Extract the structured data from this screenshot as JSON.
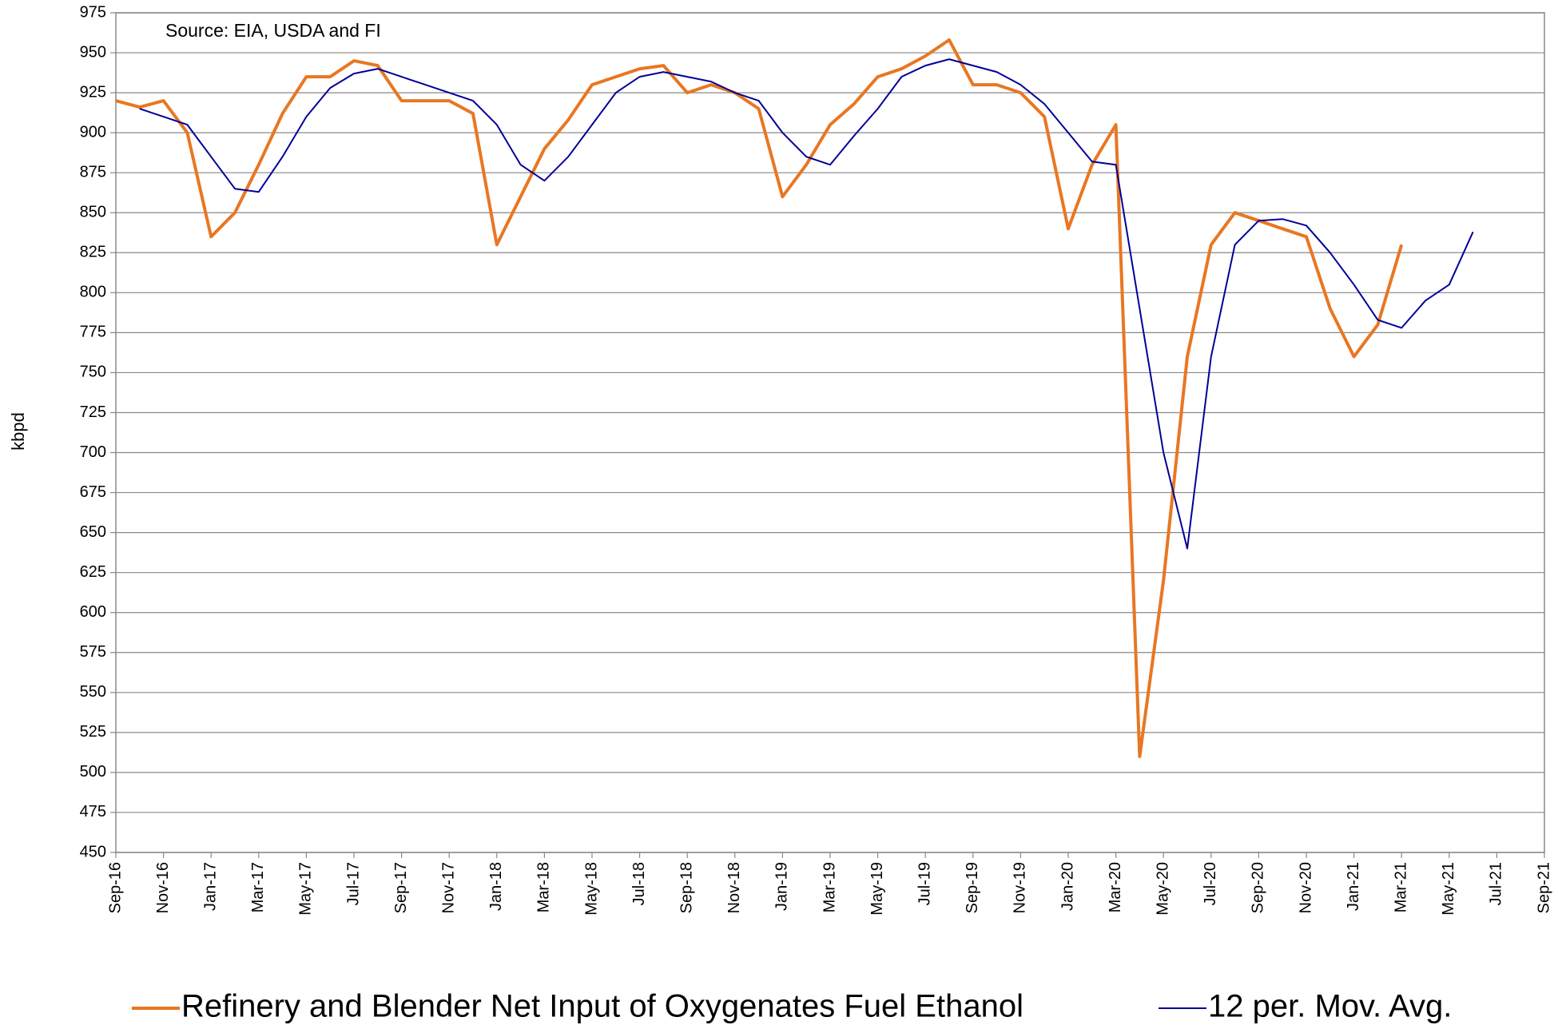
{
  "chart_data": {
    "type": "line",
    "y_label": "kbpd",
    "annotation": "Source: EIA, USDA and FI",
    "categories": [
      "Sep-16",
      null,
      "Nov-16",
      null,
      "Jan-17",
      null,
      "Mar-17",
      null,
      "May-17",
      null,
      "Jul-17",
      null,
      "Sep-17",
      null,
      "Nov-17",
      null,
      "Jan-18",
      null,
      "Mar-18",
      null,
      "May-18",
      null,
      "Jul-18",
      null,
      "Sep-18",
      null,
      "Nov-18",
      null,
      "Jan-19",
      null,
      "Mar-19",
      null,
      "May-19",
      null,
      "Jul-19",
      null,
      "Sep-19",
      null,
      "Nov-19",
      null,
      "Jan-20",
      null,
      "Mar-20",
      null,
      "May-20",
      null,
      "Jul-20",
      null,
      "Sep-20",
      null,
      "Nov-20",
      null,
      "Jan-21",
      null,
      "Mar-21",
      null,
      "May-21",
      null,
      "Jul-21",
      null,
      "Sep-21"
    ],
    "series": [
      {
        "name": "Refinery and Blender Net Input of Oxygenates Fuel Ethanol",
        "color": "#E87722",
        "values": [
          920,
          916,
          920,
          900,
          835,
          850,
          880,
          912,
          935,
          935,
          945,
          942,
          920,
          920,
          920,
          912,
          830,
          860,
          890,
          908,
          930,
          935,
          940,
          942,
          925,
          930,
          925,
          915,
          860,
          880,
          905,
          918,
          935,
          940,
          948,
          958,
          930,
          930,
          925,
          910,
          840,
          880,
          905,
          510,
          620,
          760,
          830,
          850,
          845,
          840,
          835,
          790,
          760,
          780,
          830,
          null,
          null,
          null,
          null,
          null,
          null
        ]
      },
      {
        "name": "12 per. Mov. Avg.",
        "color": "#000099",
        "values": [
          null,
          915,
          910,
          905,
          885,
          865,
          863,
          885,
          910,
          928,
          937,
          940,
          935,
          930,
          925,
          920,
          905,
          880,
          870,
          885,
          905,
          925,
          935,
          938,
          935,
          932,
          925,
          920,
          900,
          885,
          880,
          898,
          915,
          935,
          942,
          946,
          942,
          938,
          930,
          918,
          900,
          882,
          880,
          790,
          700,
          640,
          760,
          830,
          845,
          846,
          842,
          825,
          805,
          783,
          778,
          795,
          805,
          838,
          null,
          null,
          null
        ]
      }
    ],
    "ylim": [
      450,
      975
    ],
    "yticks": [
      450,
      475,
      500,
      525,
      550,
      575,
      600,
      625,
      650,
      675,
      700,
      725,
      750,
      775,
      800,
      825,
      850,
      875,
      900,
      925,
      950,
      975
    ],
    "grid": true,
    "legend": "bottom"
  }
}
